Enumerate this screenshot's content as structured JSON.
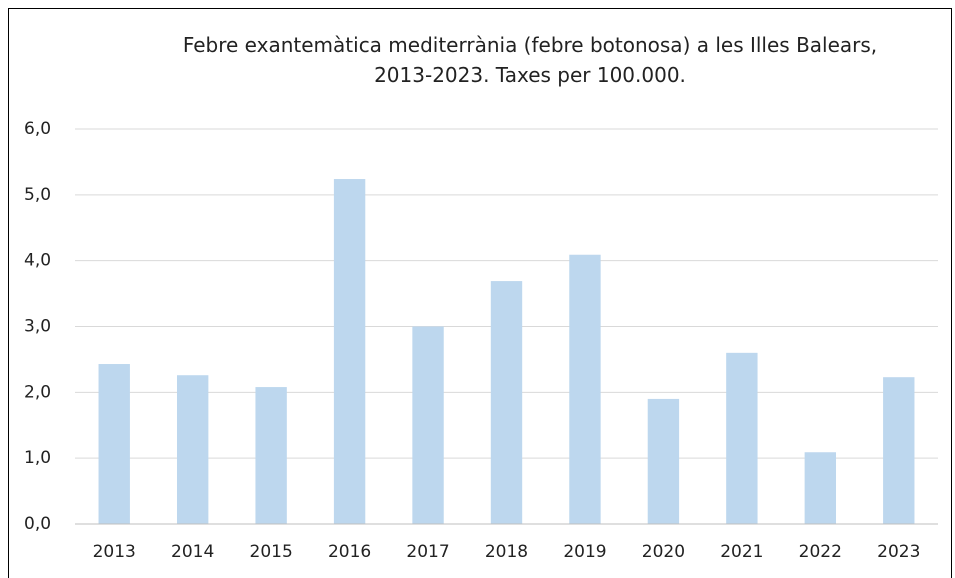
{
  "chart_data": {
    "type": "bar",
    "title": "Febre exantemàtica mediterrània (febre botonosa) a les Illes Balears, 2013-2023. Taxes per 100.000.",
    "categories": [
      "2013",
      "2014",
      "2015",
      "2016",
      "2017",
      "2018",
      "2019",
      "2020",
      "2021",
      "2022",
      "2023"
    ],
    "values": [
      2.43,
      2.26,
      2.08,
      5.24,
      3.0,
      3.69,
      4.09,
      1.9,
      2.6,
      1.09,
      2.23
    ],
    "color": "#bdd7ee",
    "ylim": [
      0,
      6
    ],
    "yticks": [
      {
        "value": 0,
        "label": "0,0"
      },
      {
        "value": 1,
        "label": "1,0"
      },
      {
        "value": 2,
        "label": "2,0"
      },
      {
        "value": 3,
        "label": "3,0"
      },
      {
        "value": 4,
        "label": "4,0"
      },
      {
        "value": 5,
        "label": "5,0"
      },
      {
        "value": 6,
        "label": "6,0"
      }
    ],
    "grid": true
  }
}
